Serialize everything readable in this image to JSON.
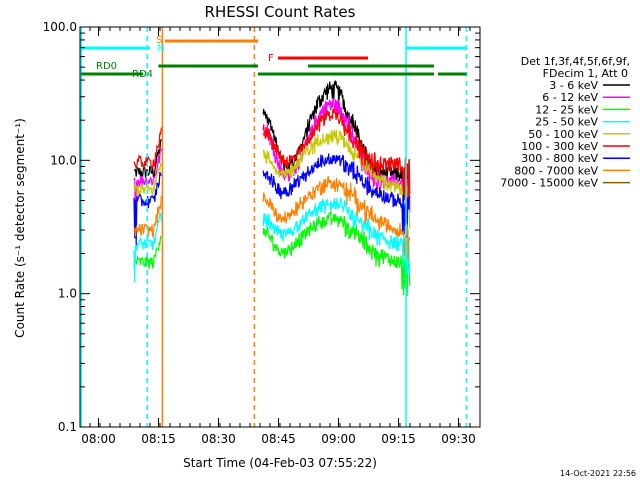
{
  "chart_data": {
    "type": "line",
    "title": "RHESSI Count Rates",
    "xlabel": "Start Time (04-Feb-03 07:55:22)",
    "ylabel": "Count Rate (s⁻¹ detector segment⁻¹)",
    "yscale": "log",
    "ylim": [
      0.1,
      100.0
    ],
    "xlim_minutes": [
      0,
      100
    ],
    "y_ticks": [
      {
        "v": 100.0,
        "label": "100.0"
      },
      {
        "v": 10.0,
        "label": "10.0"
      },
      {
        "v": 1.0,
        "label": "1.0"
      },
      {
        "v": 0.1,
        "label": "0.1"
      }
    ],
    "x_ticks": [
      {
        "t": 4.63,
        "label": "08:00"
      },
      {
        "t": 19.63,
        "label": "08:15"
      },
      {
        "t": 34.63,
        "label": "08:30"
      },
      {
        "t": 49.63,
        "label": "08:45"
      },
      {
        "t": 64.63,
        "label": "09:00"
      },
      {
        "t": 79.63,
        "label": "09:15"
      },
      {
        "t": 94.63,
        "label": "09:30"
      }
    ],
    "legend_title": [
      "Det 1f,3f,4f,5f,6f,9f,",
      "FDecim 1, Att 0"
    ],
    "series": [
      {
        "name": "3 - 6 keV",
        "color": "#000000",
        "base": 7.6,
        "peak": 34.0
      },
      {
        "name": "6 - 12 keV",
        "color": "#ff00ff",
        "base": 6.6,
        "peak": 26.0
      },
      {
        "name": "12 - 25 keV",
        "color": "#00ff00",
        "base": 1.6,
        "peak": 3.6
      },
      {
        "name": "25 - 50 keV",
        "color": "#00ffff",
        "base": 2.2,
        "peak": 4.6
      },
      {
        "name": "50 - 100 keV",
        "color": "#c8c800",
        "base": 5.6,
        "peak": 15.0
      },
      {
        "name": "100 - 300 keV",
        "color": "#ff0000",
        "base": 9.0,
        "peak": 22.0
      },
      {
        "name": "300 - 800 keV",
        "color": "#0000ff",
        "base": 4.6,
        "peak": 10.0
      },
      {
        "name": "800 - 7000 keV",
        "color": "#ff8000",
        "base": 2.8,
        "peak": 6.6
      },
      {
        "name": "7000 - 15000 keV",
        "color": "#806000",
        "base": 0.0,
        "peak": 0.0
      }
    ],
    "state_markers": [
      {
        "label": "S",
        "t": 19.0,
        "color": "#ff8000"
      },
      {
        "label": "N",
        "t": 19.3,
        "color": "#00ffff"
      },
      {
        "label": "F",
        "t": 47.0,
        "color": "#ff0000"
      },
      {
        "label": "RD0",
        "t": 4.0,
        "color": "#008000"
      },
      {
        "label": "RD4",
        "t": 13.0,
        "color": "#008000"
      }
    ],
    "vertical_lines": [
      {
        "t": 0.3,
        "color": "#00ffff",
        "style": "solid"
      },
      {
        "t": 16.8,
        "color": "#00ffff",
        "style": "dashed"
      },
      {
        "t": 20.6,
        "color": "#ff8000",
        "style": "solid"
      },
      {
        "t": 43.6,
        "color": "#ff8000",
        "style": "dashed"
      },
      {
        "t": 81.5,
        "color": "#00ffff",
        "style": "solid"
      },
      {
        "t": 96.6,
        "color": "#00ffff",
        "style": "dashed"
      }
    ]
  },
  "footer": {
    "timestamp": "14-Oct-2021 22:56"
  }
}
